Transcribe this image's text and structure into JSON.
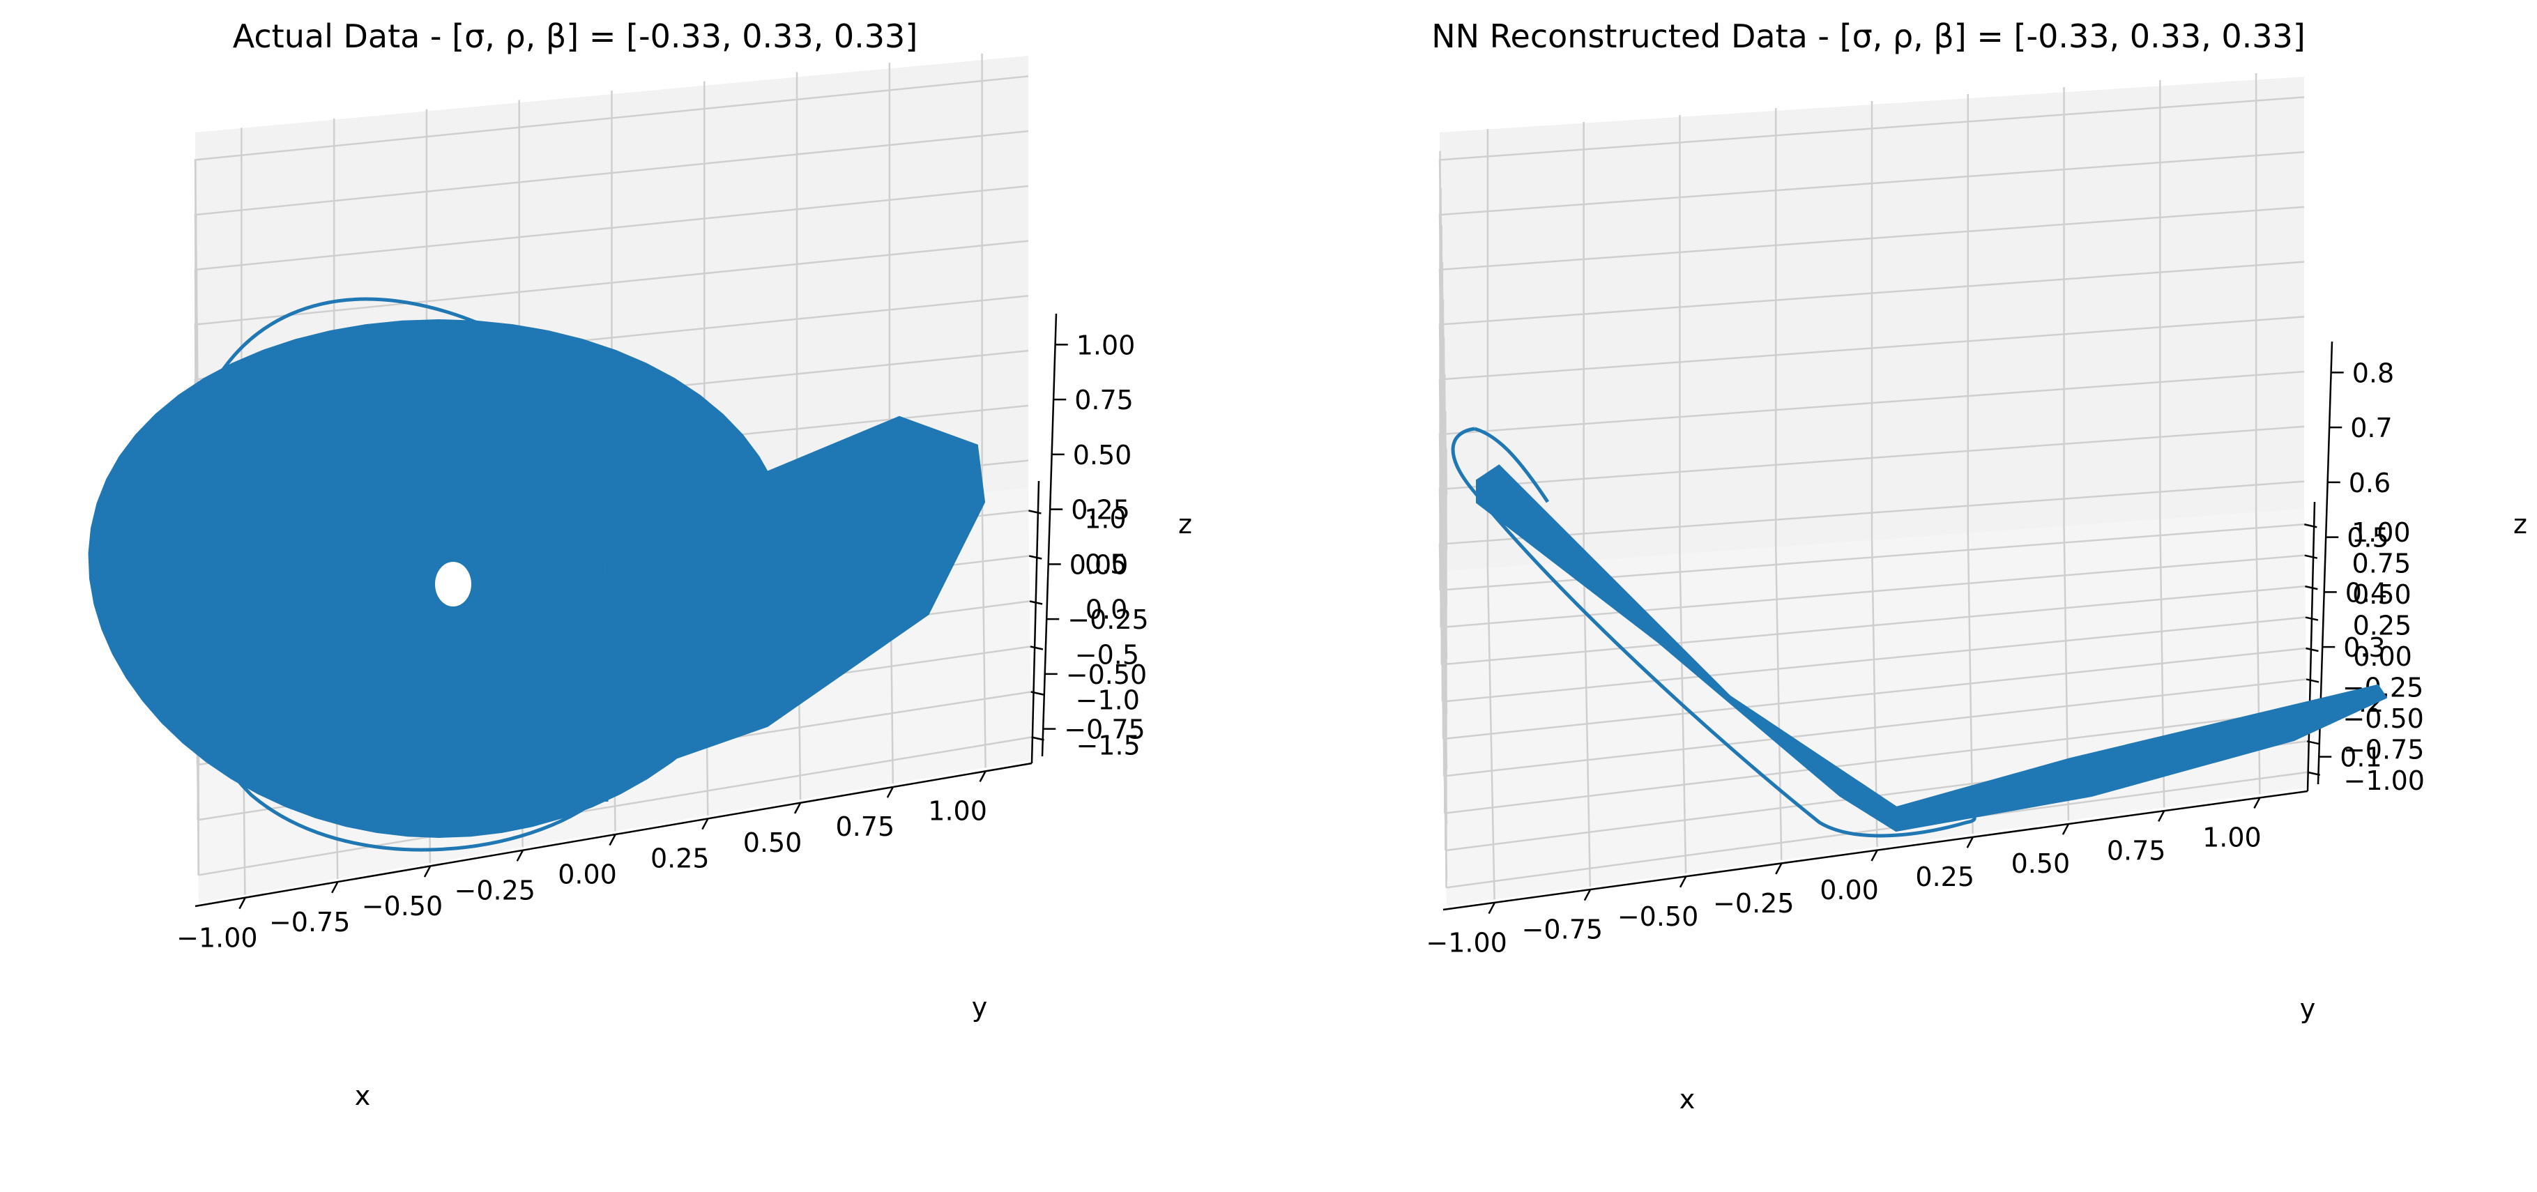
{
  "colors": {
    "line": "#1f77b4",
    "pane_back": "#f2f2f2",
    "pane_side": "#ececec",
    "pane_floor": "#f5f5f5",
    "grid": "#cfcfcf",
    "axis": "#000000"
  },
  "chart_data": [
    {
      "type": "line",
      "projection": "3d",
      "title": "Actual Data - [σ, ρ, β] = [-0.33,  0.33,  0.33]",
      "xlabel": "x",
      "ylabel": "y",
      "zlabel": "z",
      "xlim": [
        -1.1,
        1.1
      ],
      "ylim": [
        -1.7,
        1.5
      ],
      "zlim": [
        -0.95,
        1.25
      ],
      "xticks": [
        "−1.00",
        "−0.75",
        "−0.50",
        "−0.25",
        "0.00",
        "0.25",
        "0.50",
        "0.75",
        "1.00"
      ],
      "xtick_values": [
        -1.0,
        -0.75,
        -0.5,
        -0.25,
        0.0,
        0.25,
        0.5,
        0.75,
        1.0
      ],
      "yticks": [
        "−1.5",
        "−1.0",
        "−0.5",
        "0.0",
        "0.5",
        "1.0"
      ],
      "ytick_values": [
        -1.5,
        -1.0,
        -0.5,
        0.0,
        0.5,
        1.0
      ],
      "zticks": [
        "−0.75",
        "−0.50",
        "−0.25",
        "0.00",
        "0.25",
        "0.50",
        "0.75",
        "1.00"
      ],
      "ztick_values": [
        -0.75,
        -0.5,
        -0.25,
        0.0,
        0.25,
        0.5,
        0.75,
        1.0
      ],
      "grid": true,
      "series": [
        {
          "shape": "chaotic double-lobe attractor",
          "points": [
            {
              "x": -0.45,
              "y": 1.35,
              "z": 0.1
            },
            {
              "x": -0.8,
              "y": 1.1,
              "z": 0.35
            },
            {
              "x": -0.95,
              "y": 0.5,
              "z": 0.7
            },
            {
              "x": -0.8,
              "y": -0.2,
              "z": 0.95
            },
            {
              "x": -0.4,
              "y": -0.7,
              "z": 1.05
            },
            {
              "x": 0.05,
              "y": -0.85,
              "z": 0.9
            },
            {
              "x": 0.4,
              "y": -0.8,
              "z": 0.55
            },
            {
              "x": 0.55,
              "y": -0.55,
              "z": 0.2
            },
            {
              "x": 0.4,
              "y": -0.1,
              "z": -0.15
            },
            {
              "x": 0.1,
              "y": 0.4,
              "z": -0.45
            },
            {
              "x": -0.25,
              "y": 0.85,
              "z": -0.6
            },
            {
              "x": -0.5,
              "y": 1.2,
              "z": -0.4
            },
            {
              "x": -0.55,
              "y": 1.35,
              "z": -0.05
            },
            {
              "x": -0.35,
              "y": 1.3,
              "z": 0.1
            },
            {
              "x": -0.05,
              "y": 0.95,
              "z": -0.25
            },
            {
              "x": 0.35,
              "y": 0.55,
              "z": -0.55
            },
            {
              "x": 0.75,
              "y": 0.3,
              "z": -0.4
            },
            {
              "x": 1.0,
              "y": 0.3,
              "z": 0.0
            },
            {
              "x": 1.0,
              "y": 0.55,
              "z": 0.4
            },
            {
              "x": 0.85,
              "y": 0.9,
              "z": 0.55
            },
            {
              "x": 0.6,
              "y": 1.1,
              "z": 0.35
            },
            {
              "x": 0.35,
              "y": 1.2,
              "z": 0.0
            },
            {
              "x": 0.1,
              "y": 1.25,
              "z": -0.2
            },
            {
              "x": -0.2,
              "y": 1.3,
              "z": -0.05
            },
            {
              "x": -0.45,
              "y": 1.35,
              "z": 0.1
            }
          ]
        }
      ]
    },
    {
      "type": "line",
      "projection": "3d",
      "title": "NN Reconstructed Data - [σ, ρ, β] = [-0.33,  0.33,  0.33]",
      "xlabel": "x",
      "ylabel": "y",
      "zlabel": "z",
      "xlim": [
        -1.1,
        1.1
      ],
      "ylim": [
        -1.1,
        1.1
      ],
      "zlim": [
        0.03,
        0.87
      ],
      "xticks": [
        "−1.00",
        "−0.75",
        "−0.50",
        "−0.25",
        "0.00",
        "0.25",
        "0.50",
        "0.75",
        "1.00"
      ],
      "xtick_values": [
        -1.0,
        -0.75,
        -0.5,
        -0.25,
        0.0,
        0.25,
        0.5,
        0.75,
        1.0
      ],
      "yticks": [
        "−1.00",
        "−0.75",
        "−0.50",
        "−0.25",
        "0.00",
        "0.25",
        "0.50",
        "0.75",
        "1.00"
      ],
      "ytick_values": [
        -1.0,
        -0.75,
        -0.5,
        -0.25,
        0.0,
        0.25,
        0.5,
        0.75,
        1.0
      ],
      "zticks": [
        "0.1",
        "0.2",
        "0.3",
        "0.4",
        "0.5",
        "0.6",
        "0.7",
        "0.8"
      ],
      "ztick_values": [
        0.1,
        0.2,
        0.3,
        0.4,
        0.5,
        0.6,
        0.7,
        0.8
      ],
      "grid": true,
      "series": [
        {
          "shape": "collapsed attractor",
          "points": [
            {
              "x": -0.95,
              "y": 0.9,
              "z": 0.8
            },
            {
              "x": -0.75,
              "y": 0.45,
              "z": 0.55
            },
            {
              "x": -0.55,
              "y": 0.0,
              "z": 0.35
            },
            {
              "x": -0.35,
              "y": -0.4,
              "z": 0.18
            },
            {
              "x": -0.15,
              "y": -0.65,
              "z": 0.08
            },
            {
              "x": 0.05,
              "y": -0.55,
              "z": 0.1
            },
            {
              "x": 0.3,
              "y": -0.3,
              "z": 0.15
            },
            {
              "x": 0.6,
              "y": 0.05,
              "z": 0.18
            },
            {
              "x": 0.95,
              "y": 0.55,
              "z": 0.22
            },
            {
              "x": 1.0,
              "y": 0.75,
              "z": 0.2
            },
            {
              "x": 0.85,
              "y": 0.6,
              "z": 0.15
            },
            {
              "x": 0.5,
              "y": 0.1,
              "z": 0.12
            },
            {
              "x": 0.15,
              "y": -0.45,
              "z": 0.08
            },
            {
              "x": -0.1,
              "y": -0.7,
              "z": 0.07
            },
            {
              "x": -0.3,
              "y": -0.5,
              "z": 0.12
            },
            {
              "x": -0.5,
              "y": -0.1,
              "z": 0.28
            },
            {
              "x": -0.7,
              "y": 0.35,
              "z": 0.48
            },
            {
              "x": -0.9,
              "y": 0.8,
              "z": 0.72
            },
            {
              "x": -0.95,
              "y": 0.9,
              "z": 0.8
            }
          ]
        }
      ]
    }
  ]
}
